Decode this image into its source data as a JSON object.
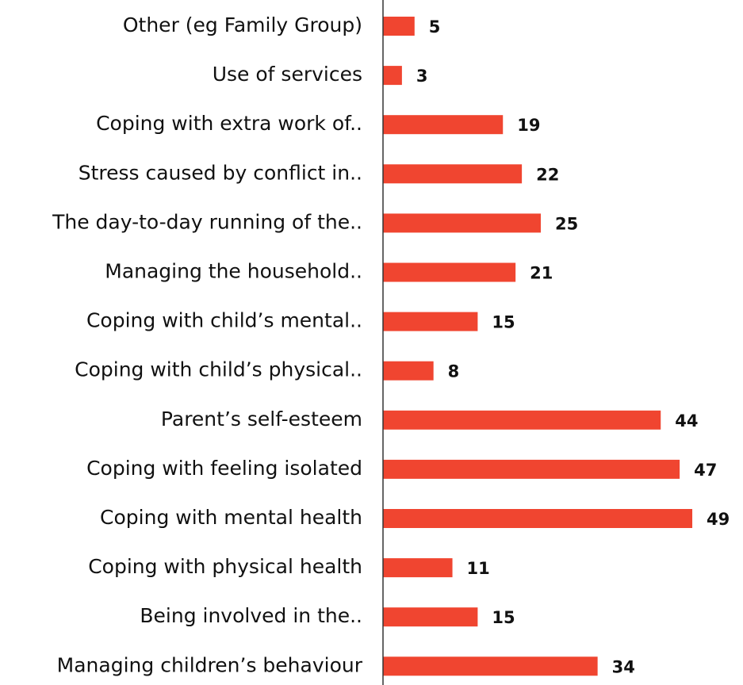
{
  "chart_data": {
    "type": "bar",
    "orientation": "horizontal",
    "categories": [
      "Other (eg Family Group)",
      "Use of services",
      "Coping with extra work of..",
      "Stress caused by conflict in..",
      "The day-to-day running of the..",
      "Managing the household..",
      "Coping with child’s mental..",
      "Coping with child’s physical..",
      "Parent’s self-esteem",
      "Coping with feeling isolated",
      "Coping with mental health",
      "Coping with physical health",
      "Being involved in the..",
      "Managing children’s behaviour"
    ],
    "values": [
      5,
      3,
      19,
      22,
      25,
      21,
      15,
      8,
      44,
      47,
      49,
      11,
      15,
      34
    ],
    "color": "#f04530",
    "xlim": [
      0,
      55
    ]
  }
}
